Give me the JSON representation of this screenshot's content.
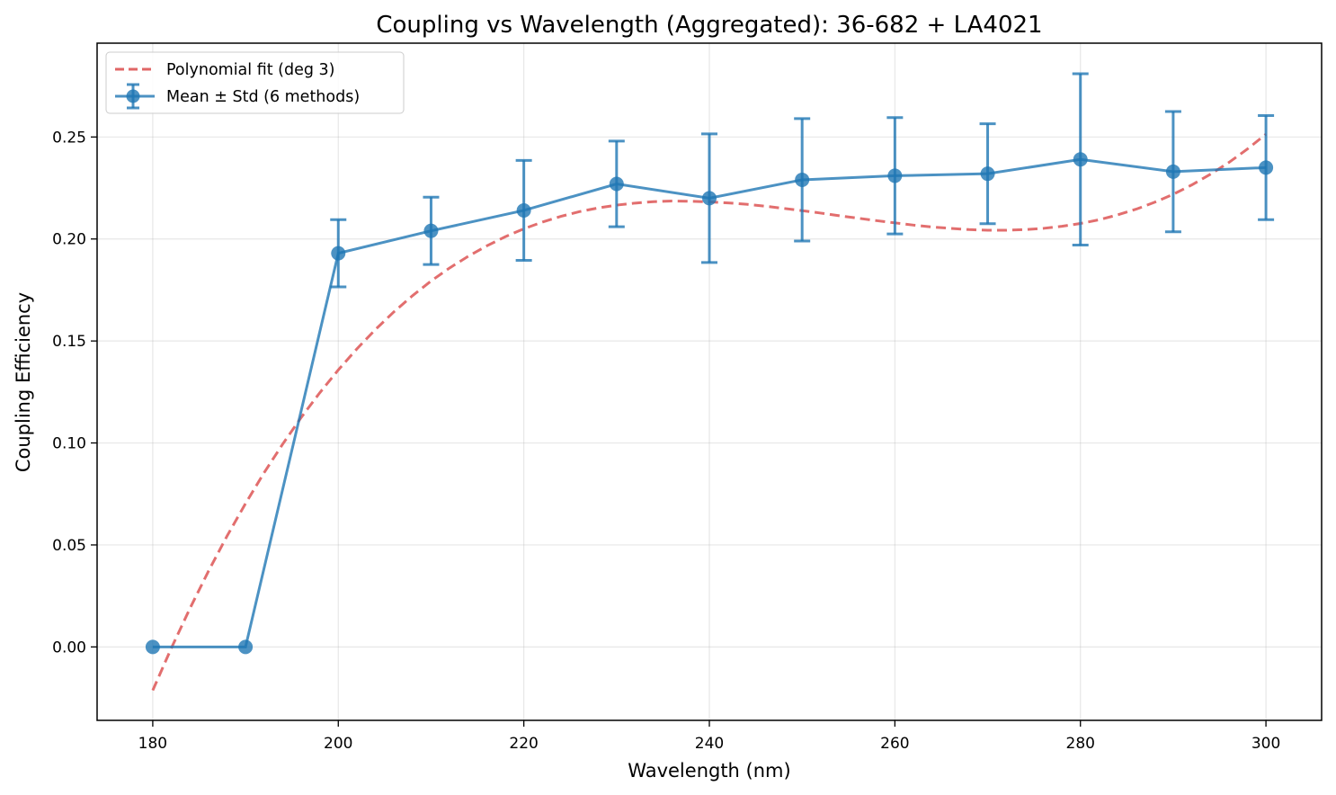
{
  "chart_data": {
    "type": "line",
    "title": "Coupling vs Wavelength (Aggregated): 36-682 + LA4021",
    "xlabel": "Wavelength (nm)",
    "ylabel": "Coupling Efficiency",
    "xlim": [
      174,
      306
    ],
    "ylim": [
      -0.036,
      0.296
    ],
    "xticks": [
      180,
      200,
      220,
      240,
      260,
      280,
      300
    ],
    "xtick_labels": [
      "180",
      "200",
      "220",
      "240",
      "260",
      "280",
      "300"
    ],
    "yticks": [
      0.0,
      0.05,
      0.1,
      0.15,
      0.2,
      0.25
    ],
    "ytick_labels": [
      "0.00",
      "0.05",
      "0.10",
      "0.15",
      "0.20",
      "0.25"
    ],
    "grid": true,
    "legend_position": "top-left",
    "series": [
      {
        "name": "Polynomial fit (deg 3)",
        "style": "dashed",
        "color": "#e06666",
        "x": [
          180,
          182,
          184,
          186,
          188,
          190,
          192,
          194,
          196,
          198,
          200,
          202,
          204,
          206,
          208,
          210,
          212,
          214,
          216,
          218,
          220,
          222,
          224,
          226,
          228,
          230,
          232,
          234,
          236,
          238,
          240,
          242,
          244,
          246,
          248,
          250,
          252,
          254,
          256,
          258,
          260,
          262,
          264,
          266,
          268,
          270,
          272,
          274,
          276,
          278,
          280,
          282,
          284,
          286,
          288,
          290,
          292,
          294,
          296,
          298,
          300
        ],
        "y": [
          -0.0213,
          -0.0006,
          0.0188,
          0.0371,
          0.0543,
          0.0703,
          0.0854,
          0.0994,
          0.1125,
          0.1246,
          0.1358,
          0.1461,
          0.1556,
          0.1643,
          0.1722,
          0.1794,
          0.1858,
          0.1915,
          0.1966,
          0.2011,
          0.205,
          0.2083,
          0.2111,
          0.2134,
          0.2152,
          0.2166,
          0.2176,
          0.2183,
          0.2186,
          0.2185,
          0.2182,
          0.2177,
          0.217,
          0.2161,
          0.215,
          0.2139,
          0.2127,
          0.2114,
          0.2102,
          0.209,
          0.2079,
          0.2068,
          0.2059,
          0.2052,
          0.2046,
          0.2043,
          0.2043,
          0.2046,
          0.2052,
          0.2062,
          0.2076,
          0.2094,
          0.2118,
          0.2146,
          0.218,
          0.2219,
          0.2265,
          0.2317,
          0.2375,
          0.2441,
          0.2514
        ]
      },
      {
        "name": "Mean ± Std (6 methods)",
        "style": "solid-markers-errorbars",
        "color": "#1f77b4",
        "x": [
          180,
          190,
          200,
          210,
          220,
          230,
          240,
          250,
          260,
          270,
          280,
          290,
          300
        ],
        "y": [
          0.0,
          0.0,
          0.193,
          0.204,
          0.214,
          0.227,
          0.22,
          0.229,
          0.231,
          0.232,
          0.239,
          0.233,
          0.235
        ],
        "err": [
          0.0,
          0.0,
          0.0165,
          0.0165,
          0.0245,
          0.021,
          0.0315,
          0.03,
          0.0285,
          0.0245,
          0.042,
          0.0295,
          0.0255
        ]
      }
    ]
  }
}
